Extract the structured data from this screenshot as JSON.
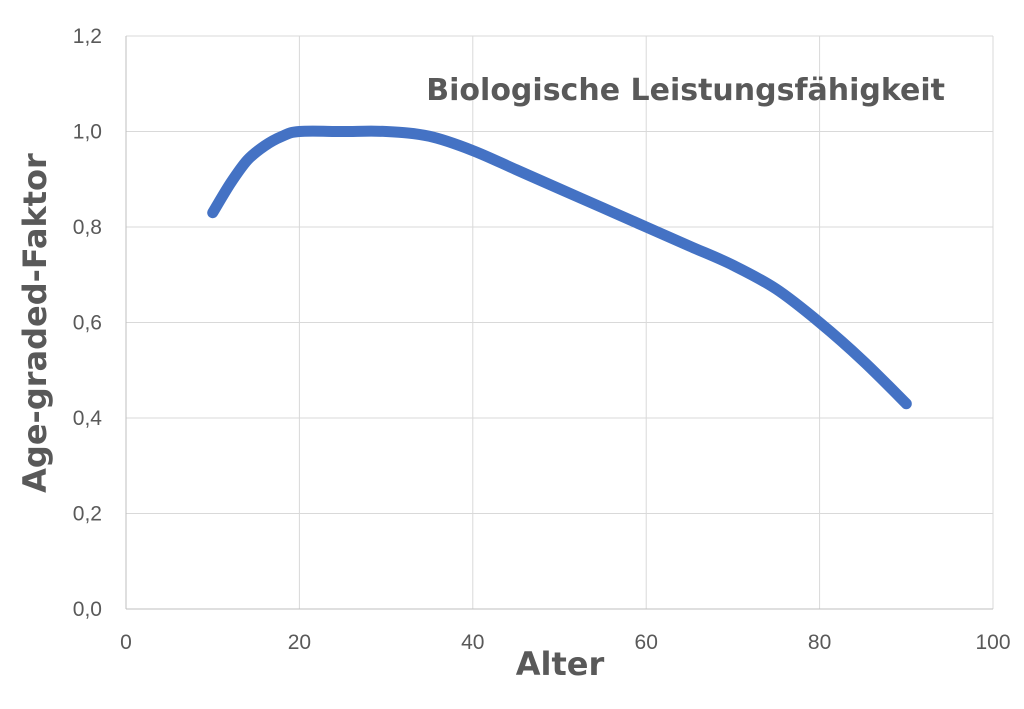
{
  "chart_data": {
    "type": "line",
    "title": "Biologische Leistungsfähigkeit",
    "xlabel": "Alter",
    "ylabel": "Age-graded-Faktor",
    "xlim": [
      0,
      100
    ],
    "ylim": [
      0,
      1.2
    ],
    "x_ticks": [
      "0",
      "20",
      "40",
      "60",
      "80",
      "100"
    ],
    "y_ticks": [
      "0,0",
      "0,2",
      "0,4",
      "0,6",
      "0,8",
      "1,0",
      "1,2"
    ],
    "grid": true,
    "legend": "none",
    "series": [
      {
        "color": "#4472c4",
        "x": [
          10,
          12,
          14,
          16,
          18,
          20,
          25,
          30,
          35,
          40,
          45,
          50,
          55,
          60,
          65,
          70,
          75,
          80,
          85,
          90
        ],
        "y": [
          0.83,
          0.89,
          0.94,
          0.97,
          0.99,
          1.0,
          1.0,
          1.0,
          0.99,
          0.96,
          0.92,
          0.88,
          0.84,
          0.8,
          0.76,
          0.72,
          0.67,
          0.6,
          0.52,
          0.43
        ]
      }
    ]
  }
}
